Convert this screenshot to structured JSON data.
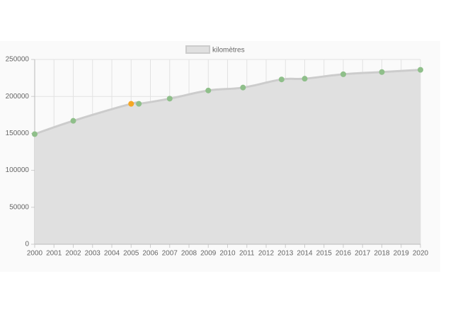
{
  "chart_data": {
    "type": "line",
    "x": [
      2000,
      2002,
      2005,
      2005.4,
      2007,
      2009,
      2010.8,
      2012.8,
      2014,
      2016,
      2018,
      2020
    ],
    "series": [
      {
        "name": "kilomètres",
        "color": "#cccccc",
        "fill": "#e0e0e0",
        "point_colors": [
          "#8fbf8a",
          "#8fbf8a",
          "#f5a623",
          "#8fbf8a",
          "#8fbf8a",
          "#8fbf8a",
          "#8fbf8a",
          "#8fbf8a",
          "#8fbf8a",
          "#8fbf8a",
          "#8fbf8a",
          "#8fbf8a"
        ],
        "values": [
          149000,
          167000,
          190000,
          190000,
          197000,
          208000,
          212000,
          223000,
          224000,
          230000,
          233000,
          236000
        ]
      }
    ],
    "xlim": [
      2000,
      2020
    ],
    "xticks": [
      2000,
      2001,
      2002,
      2003,
      2004,
      2005,
      2006,
      2007,
      2008,
      2009,
      2010,
      2011,
      2012,
      2013,
      2014,
      2015,
      2016,
      2017,
      2018,
      2019,
      2020
    ],
    "ylim": [
      0,
      250000
    ],
    "yticks": [
      0,
      50000,
      100000,
      150000,
      200000,
      250000
    ],
    "grid": true,
    "legend": "top"
  }
}
